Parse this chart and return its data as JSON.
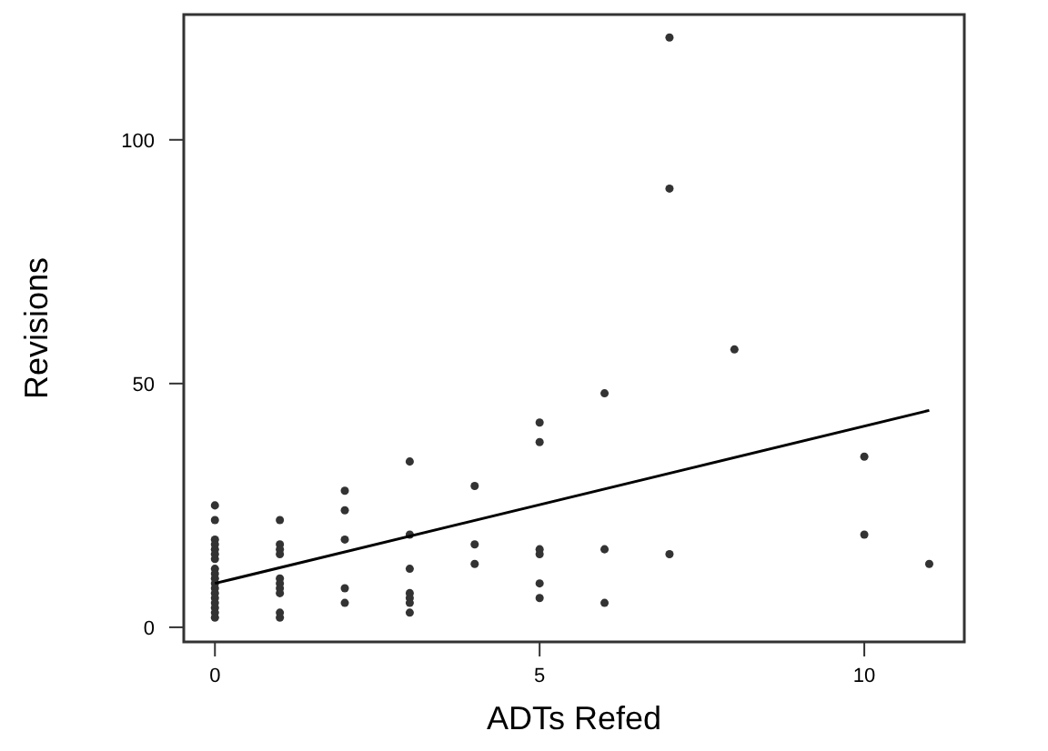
{
  "chart_data": {
    "type": "scatter",
    "xlabel": "ADTs Refed",
    "ylabel": "Revisions",
    "xlim": [
      -0.48,
      11.54
    ],
    "ylim": [
      -3,
      125.7
    ],
    "xticks": [
      0,
      5,
      10
    ],
    "yticks": [
      0,
      50,
      100
    ],
    "grid": false,
    "series": [
      {
        "color": "#333333",
        "marker": "circle",
        "x": [
          0,
          0,
          0,
          0,
          0,
          0,
          0,
          0,
          0,
          0,
          0,
          0,
          0,
          0,
          0,
          0,
          0,
          0,
          1,
          1,
          1,
          1,
          1,
          1,
          1,
          1,
          1,
          1,
          2,
          2,
          2,
          2,
          2,
          3,
          3,
          3,
          3,
          3,
          3,
          3,
          4,
          4,
          4,
          5,
          5,
          5,
          5,
          5,
          5,
          6,
          6,
          6,
          7,
          7,
          7,
          8,
          10,
          10,
          11
        ],
        "values": [
          25,
          22,
          18,
          17,
          16,
          15,
          14,
          12,
          11,
          10,
          9,
          8,
          7,
          6,
          5,
          4,
          3,
          2,
          22,
          17,
          16,
          15,
          10,
          9,
          8,
          7,
          3,
          2,
          28,
          24,
          18,
          8,
          5,
          34,
          19,
          12,
          7,
          6,
          5,
          3,
          29,
          17,
          13,
          42,
          38,
          16,
          15,
          9,
          6,
          48,
          16,
          5,
          121,
          90,
          15,
          57,
          35,
          19,
          13
        ]
      },
      {
        "type": "line",
        "color": "#000000",
        "x": [
          0,
          11
        ],
        "values": [
          9,
          44.5
        ]
      }
    ]
  }
}
